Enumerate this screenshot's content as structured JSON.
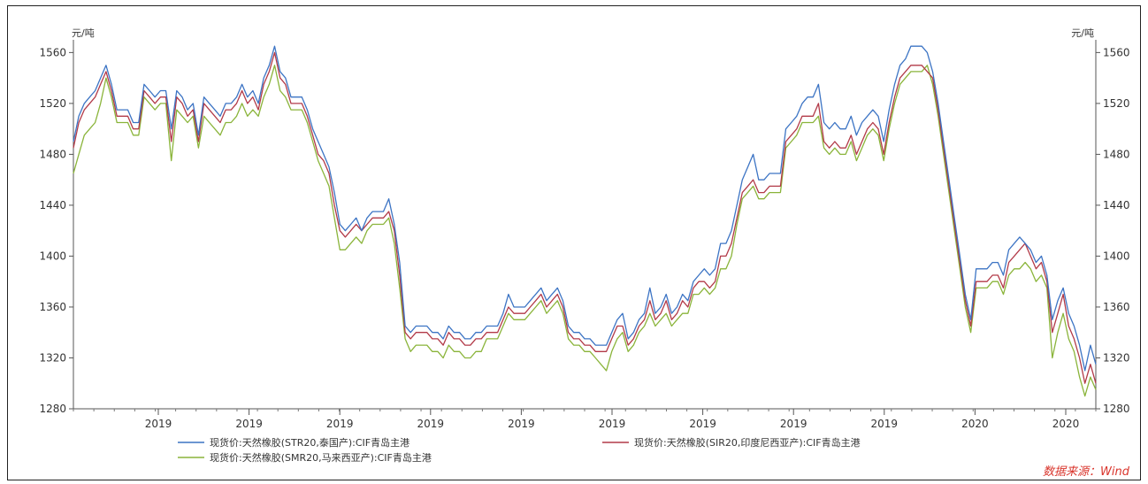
{
  "chart_data": {
    "type": "line",
    "y_unit_left": "元/吨",
    "y_unit_right": "元/吨",
    "ylim": [
      1280,
      1570
    ],
    "yticks": [
      1280,
      1320,
      1360,
      1400,
      1440,
      1480,
      1520,
      1560
    ],
    "xtick_labels": [
      "2019",
      "2019",
      "2019",
      "2019",
      "2019",
      "2019",
      "2019",
      "2019",
      "2019",
      "2020",
      "2020"
    ],
    "source": "数据来源：Wind",
    "series": [
      {
        "name": "现货价:天然橡胶(STR20,泰国产):CIF青岛主港",
        "color": "#3c74c4",
        "values": [
          1490,
          1510,
          1520,
          1525,
          1530,
          1540,
          1550,
          1535,
          1515,
          1515,
          1515,
          1505,
          1505,
          1535,
          1530,
          1525,
          1530,
          1530,
          1500,
          1530,
          1525,
          1515,
          1520,
          1495,
          1525,
          1520,
          1515,
          1510,
          1520,
          1520,
          1525,
          1535,
          1525,
          1530,
          1520,
          1540,
          1550,
          1565,
          1545,
          1540,
          1525,
          1525,
          1525,
          1515,
          1500,
          1490,
          1480,
          1470,
          1450,
          1425,
          1420,
          1425,
          1430,
          1420,
          1430,
          1435,
          1435,
          1435,
          1445,
          1425,
          1395,
          1345,
          1340,
          1345,
          1345,
          1345,
          1340,
          1340,
          1335,
          1345,
          1340,
          1340,
          1335,
          1335,
          1340,
          1340,
          1345,
          1345,
          1345,
          1355,
          1370,
          1360,
          1360,
          1360,
          1365,
          1370,
          1375,
          1365,
          1370,
          1375,
          1365,
          1345,
          1340,
          1340,
          1335,
          1335,
          1330,
          1330,
          1330,
          1340,
          1350,
          1355,
          1335,
          1340,
          1350,
          1355,
          1375,
          1355,
          1360,
          1370,
          1355,
          1360,
          1370,
          1365,
          1380,
          1385,
          1390,
          1385,
          1390,
          1410,
          1410,
          1420,
          1440,
          1460,
          1470,
          1480,
          1460,
          1460,
          1465,
          1465,
          1465,
          1500,
          1505,
          1510,
          1520,
          1525,
          1525,
          1535,
          1505,
          1500,
          1505,
          1500,
          1500,
          1510,
          1495,
          1505,
          1510,
          1515,
          1510,
          1490,
          1515,
          1535,
          1550,
          1555,
          1565,
          1565,
          1565,
          1560,
          1545,
          1520,
          1490,
          1460,
          1430,
          1400,
          1370,
          1350,
          1390,
          1390,
          1390,
          1395,
          1395,
          1385,
          1405,
          1410,
          1415,
          1410,
          1405,
          1395,
          1400,
          1385,
          1350,
          1365,
          1375,
          1355,
          1345,
          1330,
          1310,
          1330,
          1315
        ]
      },
      {
        "name": "现货价:天然橡胶(SIR20,印度尼西亚产):CIF青岛主港",
        "color": "#b23a48",
        "values": [
          1485,
          1505,
          1515,
          1520,
          1525,
          1535,
          1545,
          1530,
          1510,
          1510,
          1510,
          1500,
          1500,
          1530,
          1525,
          1520,
          1525,
          1525,
          1490,
          1525,
          1520,
          1510,
          1515,
          1490,
          1520,
          1515,
          1510,
          1505,
          1515,
          1515,
          1520,
          1530,
          1520,
          1525,
          1515,
          1535,
          1545,
          1560,
          1540,
          1535,
          1520,
          1520,
          1520,
          1510,
          1495,
          1480,
          1475,
          1465,
          1440,
          1420,
          1415,
          1420,
          1425,
          1420,
          1425,
          1430,
          1430,
          1430,
          1435,
          1420,
          1385,
          1340,
          1335,
          1340,
          1340,
          1340,
          1335,
          1335,
          1330,
          1340,
          1335,
          1335,
          1330,
          1330,
          1335,
          1335,
          1340,
          1340,
          1340,
          1350,
          1360,
          1355,
          1355,
          1355,
          1360,
          1365,
          1370,
          1360,
          1365,
          1370,
          1360,
          1340,
          1335,
          1335,
          1330,
          1330,
          1325,
          1325,
          1325,
          1335,
          1345,
          1345,
          1330,
          1335,
          1345,
          1350,
          1365,
          1350,
          1355,
          1365,
          1350,
          1355,
          1365,
          1360,
          1375,
          1380,
          1380,
          1375,
          1380,
          1400,
          1400,
          1410,
          1430,
          1450,
          1455,
          1460,
          1450,
          1450,
          1455,
          1455,
          1455,
          1490,
          1495,
          1500,
          1510,
          1510,
          1510,
          1520,
          1490,
          1485,
          1490,
          1485,
          1485,
          1495,
          1480,
          1490,
          1500,
          1505,
          1500,
          1480,
          1505,
          1525,
          1540,
          1545,
          1550,
          1550,
          1550,
          1545,
          1540,
          1515,
          1485,
          1455,
          1425,
          1395,
          1365,
          1345,
          1380,
          1380,
          1380,
          1385,
          1385,
          1375,
          1395,
          1400,
          1405,
          1410,
          1400,
          1390,
          1395,
          1380,
          1340,
          1355,
          1370,
          1345,
          1335,
          1320,
          1300,
          1315,
          1300
        ]
      },
      {
        "name": "现货价:天然橡胶(SMR20,马来西亚产):CIF青岛主港",
        "color": "#8ab43a",
        "values": [
          1465,
          1480,
          1495,
          1500,
          1505,
          1520,
          1540,
          1525,
          1505,
          1505,
          1505,
          1495,
          1495,
          1525,
          1520,
          1515,
          1520,
          1520,
          1475,
          1515,
          1510,
          1505,
          1510,
          1485,
          1510,
          1505,
          1500,
          1495,
          1505,
          1505,
          1510,
          1520,
          1510,
          1515,
          1510,
          1525,
          1535,
          1550,
          1530,
          1525,
          1515,
          1515,
          1515,
          1505,
          1490,
          1475,
          1465,
          1455,
          1430,
          1405,
          1405,
          1410,
          1415,
          1410,
          1420,
          1425,
          1425,
          1425,
          1430,
          1410,
          1375,
          1335,
          1325,
          1330,
          1330,
          1330,
          1325,
          1325,
          1320,
          1330,
          1325,
          1325,
          1320,
          1320,
          1325,
          1325,
          1335,
          1335,
          1335,
          1345,
          1355,
          1350,
          1350,
          1350,
          1355,
          1360,
          1365,
          1355,
          1360,
          1365,
          1355,
          1335,
          1330,
          1330,
          1325,
          1325,
          1320,
          1315,
          1310,
          1325,
          1335,
          1340,
          1325,
          1330,
          1340,
          1345,
          1355,
          1345,
          1350,
          1355,
          1345,
          1350,
          1355,
          1355,
          1370,
          1370,
          1375,
          1370,
          1375,
          1390,
          1390,
          1400,
          1425,
          1445,
          1450,
          1455,
          1445,
          1445,
          1450,
          1450,
          1450,
          1485,
          1490,
          1495,
          1505,
          1505,
          1505,
          1510,
          1485,
          1480,
          1485,
          1480,
          1480,
          1490,
          1475,
          1485,
          1495,
          1500,
          1495,
          1475,
          1500,
          1520,
          1535,
          1540,
          1545,
          1545,
          1545,
          1550,
          1535,
          1510,
          1480,
          1450,
          1420,
          1390,
          1360,
          1340,
          1375,
          1375,
          1375,
          1380,
          1380,
          1370,
          1385,
          1390,
          1390,
          1395,
          1390,
          1380,
          1385,
          1375,
          1320,
          1340,
          1355,
          1335,
          1325,
          1305,
          1290,
          1305,
          1295
        ]
      }
    ]
  }
}
